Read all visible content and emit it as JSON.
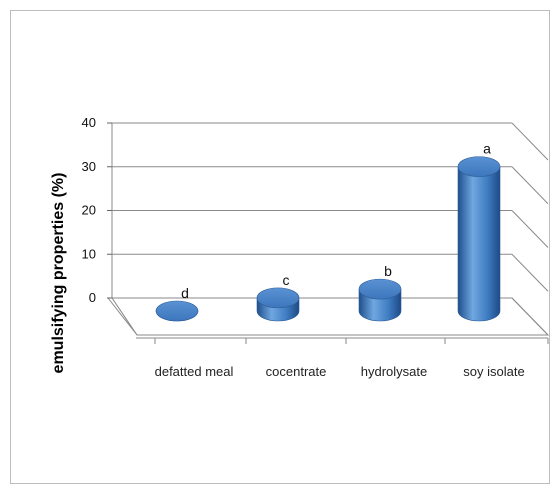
{
  "chart_data": {
    "type": "bar",
    "style": "3d-cylinder",
    "title": "",
    "xlabel": "",
    "ylabel": "emulsifying properties (%)",
    "categories": [
      "defatted meal",
      "cocentrate",
      "hydrolysate",
      "soy isolate"
    ],
    "values": [
      0,
      3,
      5,
      33
    ],
    "data_labels": [
      "d",
      "c",
      "b",
      "a"
    ],
    "ylim": [
      0,
      40
    ],
    "yticks": [
      0,
      10,
      20,
      30,
      40
    ],
    "grid": true,
    "legend": "none",
    "bar_color": "#4a86c8"
  }
}
